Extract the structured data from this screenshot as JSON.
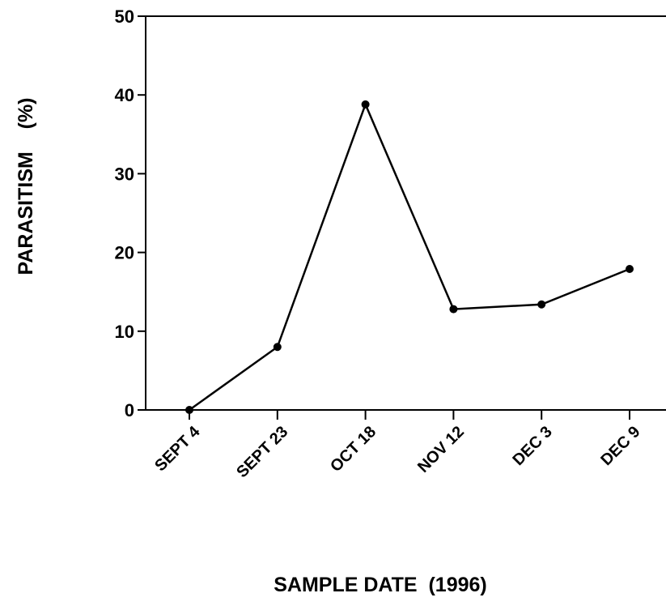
{
  "chart_data": {
    "type": "line",
    "x_label": "SAMPLE DATE  (1996)",
    "y_label": "PARASITISM    (%)",
    "categories": [
      "SEPT 4",
      "SEPT 23",
      "OCT 18",
      "NOV 12",
      "DEC 3",
      "DEC 9"
    ],
    "series": [
      {
        "name": "Parasitism",
        "color": "#000000",
        "values": [
          0,
          8,
          38.8,
          12.8,
          13.4,
          17.9
        ]
      }
    ],
    "ylim": [
      0,
      50
    ],
    "yticks": [
      0,
      10,
      20,
      30,
      40,
      50
    ],
    "grid": false
  }
}
